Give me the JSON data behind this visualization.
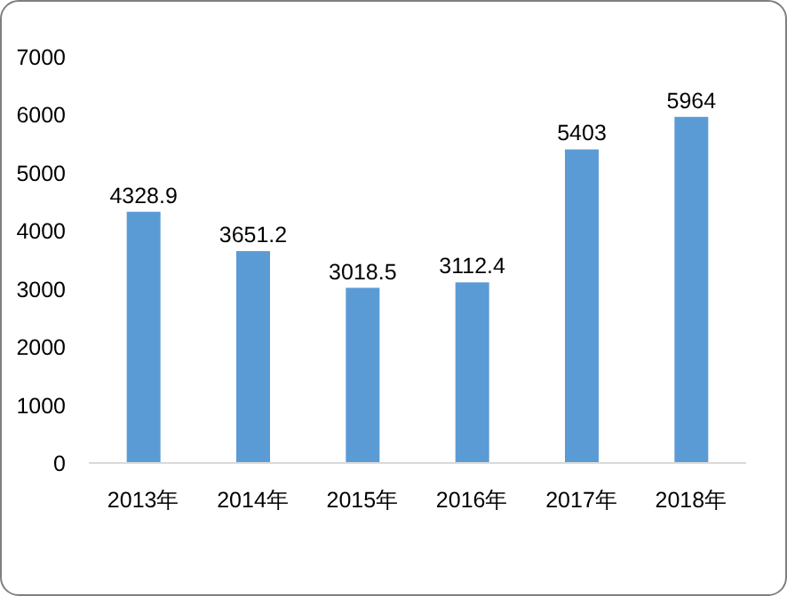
{
  "chart_data": {
    "type": "bar",
    "categories": [
      "2013年",
      "2014年",
      "2015年",
      "2016年",
      "2017年",
      "2018年"
    ],
    "values": [
      4328.9,
      3651.2,
      3018.5,
      3112.4,
      5403,
      5964
    ],
    "color": "#5b9bd5",
    "ylim": [
      0,
      7000
    ],
    "yticks": [
      0,
      1000,
      2000,
      3000,
      4000,
      5000,
      6000,
      7000
    ],
    "data_labels": true,
    "grid": false,
    "legend": false
  }
}
